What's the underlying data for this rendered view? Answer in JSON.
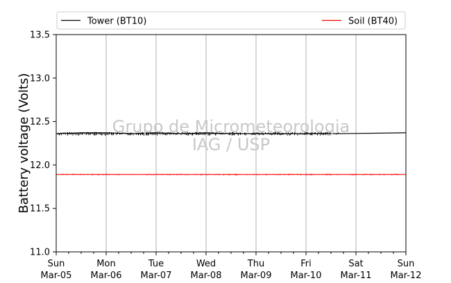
{
  "chart_data": {
    "type": "line",
    "ylabel": "Battery voltage (Volts)",
    "xlabel": "",
    "ylim": [
      11.0,
      13.5
    ],
    "y_ticks": [
      "11.0",
      "11.5",
      "12.0",
      "12.5",
      "13.0",
      "13.5"
    ],
    "xlim": [
      "2017-03-05",
      "2017-03-12"
    ],
    "x_ticks": [
      {
        "day": "Sun",
        "date": "Mar-05"
      },
      {
        "day": "Mon",
        "date": "Mar-06"
      },
      {
        "day": "Tue",
        "date": "Mar-07"
      },
      {
        "day": "Wed",
        "date": "Mar-08"
      },
      {
        "day": "Thu",
        "date": "Mar-09"
      },
      {
        "day": "Fri",
        "date": "Mar-10"
      },
      {
        "day": "Sat",
        "date": "Mar-11"
      },
      {
        "day": "Sun",
        "date": "Mar-12"
      }
    ],
    "grid": "vertical",
    "legend_position": "top",
    "series": [
      {
        "name": "Tower (BT10)",
        "color": "#000000",
        "x": [
          "2017-03-05 00:00",
          "2017-03-05 12:00",
          "2017-03-06 00:00",
          "2017-03-06 12:00",
          "2017-03-07 00:00",
          "2017-03-07 12:00",
          "2017-03-08 00:00",
          "2017-03-08 12:00",
          "2017-03-09 00:00",
          "2017-03-09 12:00",
          "2017-03-10 00:00",
          "2017-03-10 16:00",
          "2017-03-12 00:00"
        ],
        "y": [
          12.36,
          12.37,
          12.37,
          12.36,
          12.37,
          12.36,
          12.37,
          12.36,
          12.36,
          12.36,
          12.36,
          12.36,
          12.37
        ]
      },
      {
        "name": "Soil (BT40)",
        "color": "#ff0000",
        "x": [
          "2017-03-05 00:00",
          "2017-03-06 00:00",
          "2017-03-07 00:00",
          "2017-03-08 00:00",
          "2017-03-09 00:00",
          "2017-03-10 00:00",
          "2017-03-11 00:00",
          "2017-03-12 00:00"
        ],
        "y": [
          11.89,
          11.89,
          11.89,
          11.89,
          11.89,
          11.89,
          11.89,
          11.89
        ]
      }
    ],
    "watermark": [
      "Grupo de Micrometeorologia",
      "IAG / USP"
    ]
  }
}
